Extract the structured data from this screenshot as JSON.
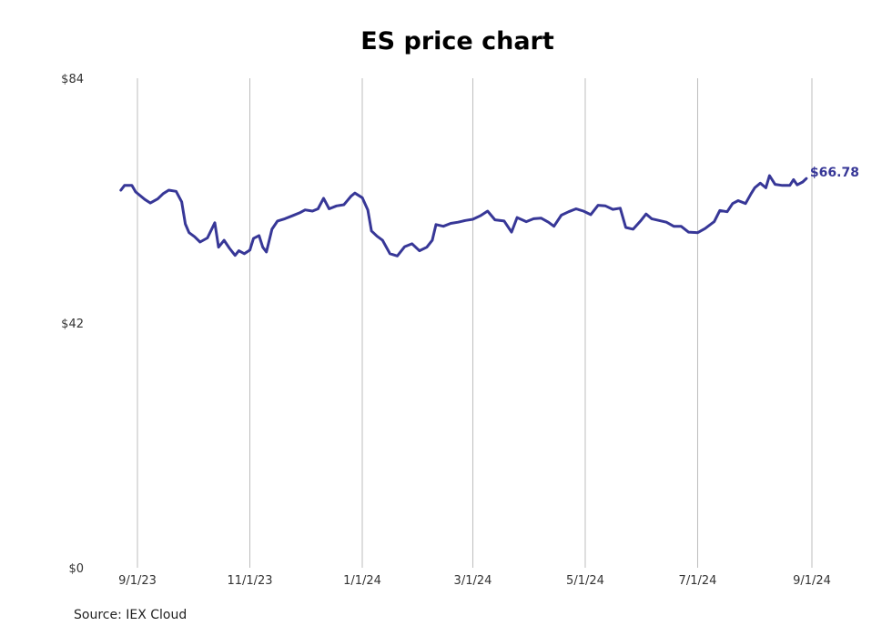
{
  "chart_data": {
    "type": "line",
    "title": "ES price chart",
    "xlabel": "",
    "ylabel": "",
    "source": "Source: IEX Cloud",
    "ylim": [
      0,
      84
    ],
    "y_ticks": [
      {
        "value": 0,
        "label": "$0"
      },
      {
        "value": 42,
        "label": "$42"
      },
      {
        "value": 84,
        "label": "$84"
      }
    ],
    "x_ticks": [
      {
        "date": "2023-09-01",
        "label": "9/1/23"
      },
      {
        "date": "2023-11-01",
        "label": "11/1/23"
      },
      {
        "date": "2024-01-01",
        "label": "1/1/24"
      },
      {
        "date": "2024-03-01",
        "label": "3/1/24"
      },
      {
        "date": "2024-05-01",
        "label": "5/1/24"
      },
      {
        "date": "2024-07-01",
        "label": "7/1/24"
      },
      {
        "date": "2024-09-01",
        "label": "9/1/24"
      }
    ],
    "xlim": [
      "2023-08-23",
      "2024-09-12"
    ],
    "grid": "vertical",
    "line_color": "#373797",
    "last_value_label": "$66.78",
    "series": [
      {
        "points": [
          [
            "2023-08-23",
            64.8
          ],
          [
            "2023-08-25",
            65.6
          ],
          [
            "2023-08-29",
            65.6
          ],
          [
            "2023-08-31",
            64.5
          ],
          [
            "2023-09-05",
            63.2
          ],
          [
            "2023-09-08",
            62.6
          ],
          [
            "2023-09-12",
            63.3
          ],
          [
            "2023-09-15",
            64.2
          ],
          [
            "2023-09-18",
            64.8
          ],
          [
            "2023-09-22",
            64.6
          ],
          [
            "2023-09-25",
            62.8
          ],
          [
            "2023-09-27",
            59.0
          ],
          [
            "2023-09-29",
            57.5
          ],
          [
            "2023-10-02",
            56.8
          ],
          [
            "2023-10-05",
            55.9
          ],
          [
            "2023-10-09",
            56.6
          ],
          [
            "2023-10-13",
            59.2
          ],
          [
            "2023-10-15",
            55.0
          ],
          [
            "2023-10-18",
            56.2
          ],
          [
            "2023-10-21",
            54.8
          ],
          [
            "2023-10-24",
            53.6
          ],
          [
            "2023-10-26",
            54.4
          ],
          [
            "2023-10-29",
            53.9
          ],
          [
            "2023-11-01",
            54.5
          ],
          [
            "2023-11-03",
            56.5
          ],
          [
            "2023-11-06",
            57.0
          ],
          [
            "2023-11-08",
            55.0
          ],
          [
            "2023-11-10",
            54.2
          ],
          [
            "2023-11-13",
            58.1
          ],
          [
            "2023-11-16",
            59.5
          ],
          [
            "2023-11-20",
            59.9
          ],
          [
            "2023-11-24",
            60.4
          ],
          [
            "2023-11-28",
            60.9
          ],
          [
            "2023-12-01",
            61.4
          ],
          [
            "2023-12-05",
            61.2
          ],
          [
            "2023-12-08",
            61.6
          ],
          [
            "2023-12-11",
            63.4
          ],
          [
            "2023-12-14",
            61.6
          ],
          [
            "2023-12-18",
            62.1
          ],
          [
            "2023-12-22",
            62.3
          ],
          [
            "2023-12-26",
            63.8
          ],
          [
            "2023-12-28",
            64.3
          ],
          [
            "2024-01-01",
            63.5
          ],
          [
            "2024-01-04",
            61.4
          ],
          [
            "2024-01-06",
            57.8
          ],
          [
            "2024-01-09",
            56.9
          ],
          [
            "2024-01-12",
            56.2
          ],
          [
            "2024-01-16",
            53.9
          ],
          [
            "2024-01-20",
            53.5
          ],
          [
            "2024-01-24",
            55.1
          ],
          [
            "2024-01-28",
            55.6
          ],
          [
            "2024-02-01",
            54.4
          ],
          [
            "2024-02-05",
            55.0
          ],
          [
            "2024-02-08",
            56.2
          ],
          [
            "2024-02-10",
            58.9
          ],
          [
            "2024-02-14",
            58.6
          ],
          [
            "2024-02-18",
            59.1
          ],
          [
            "2024-02-22",
            59.3
          ],
          [
            "2024-02-26",
            59.6
          ],
          [
            "2024-03-01",
            59.8
          ],
          [
            "2024-03-05",
            60.4
          ],
          [
            "2024-03-09",
            61.2
          ],
          [
            "2024-03-13",
            59.7
          ],
          [
            "2024-03-18",
            59.5
          ],
          [
            "2024-03-22",
            57.6
          ],
          [
            "2024-03-25",
            60.1
          ],
          [
            "2024-03-30",
            59.4
          ],
          [
            "2024-04-03",
            59.9
          ],
          [
            "2024-04-07",
            60.0
          ],
          [
            "2024-04-11",
            59.3
          ],
          [
            "2024-04-14",
            58.6
          ],
          [
            "2024-04-18",
            60.5
          ],
          [
            "2024-04-22",
            61.1
          ],
          [
            "2024-04-26",
            61.6
          ],
          [
            "2024-04-30",
            61.2
          ],
          [
            "2024-05-04",
            60.6
          ],
          [
            "2024-05-08",
            62.2
          ],
          [
            "2024-05-12",
            62.1
          ],
          [
            "2024-05-16",
            61.5
          ],
          [
            "2024-05-20",
            61.7
          ],
          [
            "2024-05-23",
            58.4
          ],
          [
            "2024-05-27",
            58.1
          ],
          [
            "2024-05-31",
            59.5
          ],
          [
            "2024-06-03",
            60.7
          ],
          [
            "2024-06-06",
            59.9
          ],
          [
            "2024-06-10",
            59.6
          ],
          [
            "2024-06-14",
            59.3
          ],
          [
            "2024-06-18",
            58.6
          ],
          [
            "2024-06-22",
            58.6
          ],
          [
            "2024-06-26",
            57.6
          ],
          [
            "2024-07-01",
            57.5
          ],
          [
            "2024-07-05",
            58.2
          ],
          [
            "2024-07-10",
            59.4
          ],
          [
            "2024-07-13",
            61.3
          ],
          [
            "2024-07-17",
            61.1
          ],
          [
            "2024-07-20",
            62.5
          ],
          [
            "2024-07-23",
            63.0
          ],
          [
            "2024-07-27",
            62.5
          ],
          [
            "2024-07-30",
            64.2
          ],
          [
            "2024-08-01",
            65.2
          ],
          [
            "2024-08-04",
            66.0
          ],
          [
            "2024-08-07",
            65.2
          ],
          [
            "2024-08-09",
            67.3
          ],
          [
            "2024-08-12",
            65.8
          ],
          [
            "2024-08-16",
            65.6
          ],
          [
            "2024-08-20",
            65.6
          ],
          [
            "2024-08-22",
            66.6
          ],
          [
            "2024-08-24",
            65.7
          ],
          [
            "2024-08-27",
            66.2
          ],
          [
            "2024-08-29",
            66.8
          ]
        ]
      }
    ]
  }
}
